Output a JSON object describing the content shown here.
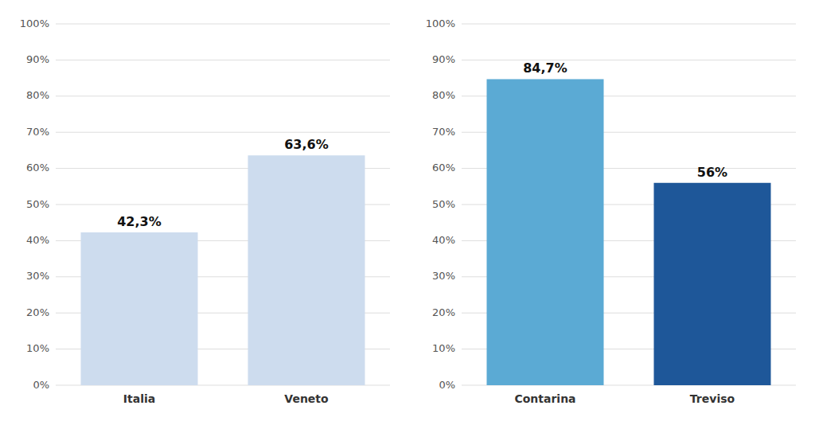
{
  "chart_data": [
    {
      "type": "bar",
      "categories": [
        "Italia",
        "Veneto"
      ],
      "values": [
        42.3,
        63.6
      ],
      "value_labels": [
        "42,3%",
        "63,6%"
      ],
      "colors": [
        "#cddcee",
        "#cddcee"
      ],
      "ylim": [
        0,
        100
      ],
      "yticks": [
        {
          "value": 0,
          "label": "0%"
        },
        {
          "value": 10,
          "label": "10%"
        },
        {
          "value": 20,
          "label": "20%"
        },
        {
          "value": 30,
          "label": "30%"
        },
        {
          "value": 40,
          "label": "40%"
        },
        {
          "value": 50,
          "label": "50%"
        },
        {
          "value": 60,
          "label": "60%"
        },
        {
          "value": 70,
          "label": "70%"
        },
        {
          "value": 80,
          "label": "80%"
        },
        {
          "value": 90,
          "label": "90%"
        },
        {
          "value": 100,
          "label": "100%"
        }
      ],
      "grid": true,
      "data_labels": true
    },
    {
      "type": "bar",
      "categories": [
        "Contarina",
        "Treviso"
      ],
      "values": [
        84.7,
        56.0
      ],
      "value_labels": [
        "84,7%",
        "56%"
      ],
      "colors": [
        "#5baad4",
        "#1e5799"
      ],
      "ylim": [
        0,
        100
      ],
      "yticks": [
        {
          "value": 0,
          "label": "0%"
        },
        {
          "value": 10,
          "label": "10%"
        },
        {
          "value": 20,
          "label": "20%"
        },
        {
          "value": 30,
          "label": "30%"
        },
        {
          "value": 40,
          "label": "40%"
        },
        {
          "value": 50,
          "label": "50%"
        },
        {
          "value": 60,
          "label": "60%"
        },
        {
          "value": 70,
          "label": "70%"
        },
        {
          "value": 80,
          "label": "80%"
        },
        {
          "value": 90,
          "label": "90%"
        },
        {
          "value": 100,
          "label": "100%"
        }
      ],
      "grid": true,
      "data_labels": true
    }
  ]
}
